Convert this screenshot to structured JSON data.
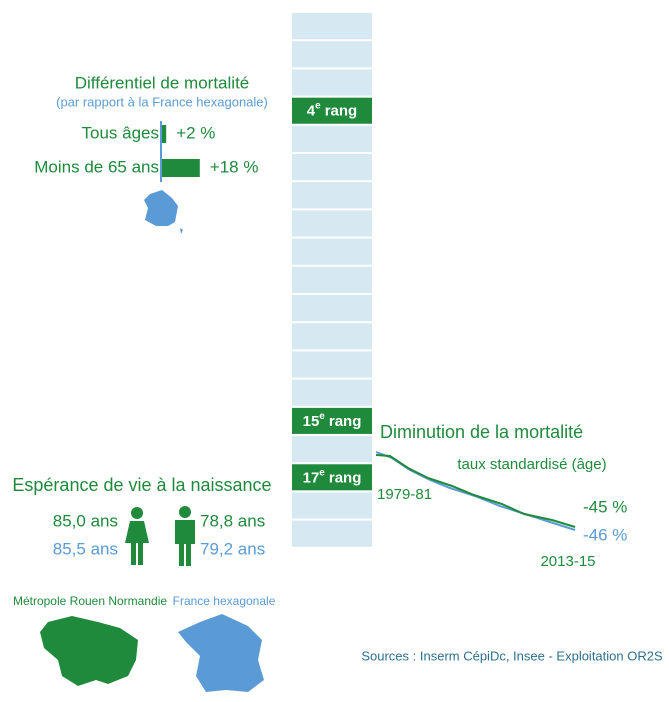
{
  "differential": {
    "title": "Différentiel de mortalité",
    "subtitle": "(par rapport à la France hexagonale)",
    "rows": [
      {
        "label": "Tous âges",
        "value": 2,
        "value_label": "+2 %"
      },
      {
        "label": "Moins de 65 ans",
        "value": 18,
        "value_label": "+18 %"
      }
    ]
  },
  "ranks": [
    {
      "rank": 4,
      "suffix": "e",
      "word": "rang"
    },
    {
      "rank": 15,
      "suffix": "e",
      "word": "rang"
    },
    {
      "rank": 17,
      "suffix": "e",
      "word": "rang"
    }
  ],
  "life_expectancy": {
    "title": "Espérance de vie à la naissance",
    "women_metro": "85,0 ans",
    "women_france": "85,5 ans",
    "men_metro": "78,8 ans",
    "men_france": "79,2 ans"
  },
  "legend": {
    "metro": "Métropole Rouen Normandie",
    "france": "France hexagonale"
  },
  "decline": {
    "title": "Diminution de la mortalité",
    "subtitle": "taux standardisé (âge)",
    "start": "1979-81",
    "end": "2013-15",
    "metro": "-45 %",
    "france": "-46 %"
  },
  "sources": "Sources : Inserm CépiDc, Insee - Exploitation OR2S"
}
